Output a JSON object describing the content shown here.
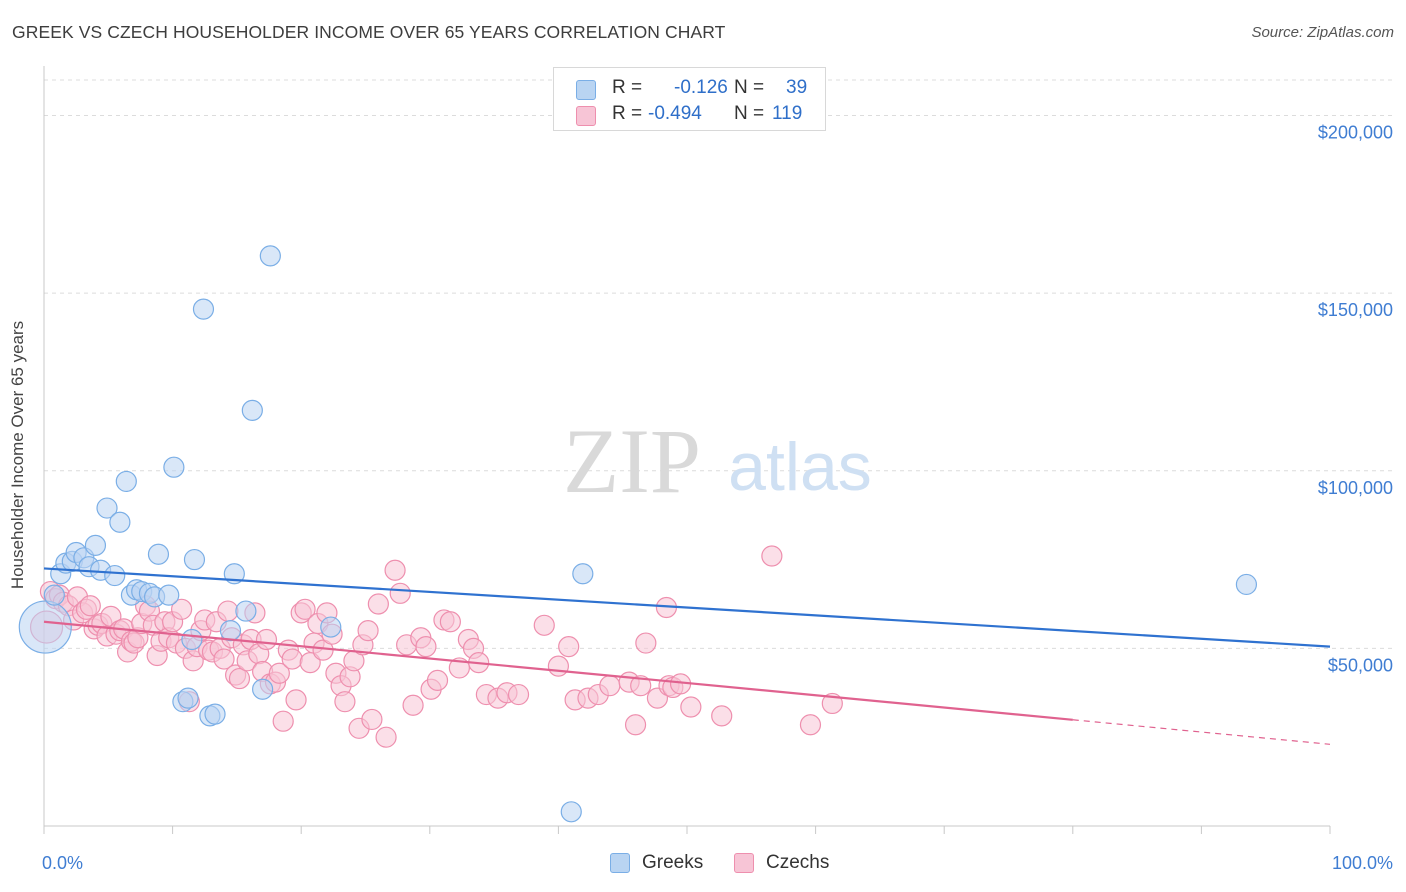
{
  "title": "GREEK VS CZECH HOUSEHOLDER INCOME OVER 65 YEARS CORRELATION CHART",
  "source": "Source: ZipAtlas.com",
  "watermark": {
    "zip": "ZIP",
    "atlas": "atlas"
  },
  "legend": {
    "greeks": {
      "r_label": "R =",
      "r_value": "-0.126",
      "n_label": "N =",
      "n_value": "39",
      "color": "#7aaee6",
      "fill": "#b9d4f2"
    },
    "czechs": {
      "r_label": "R =",
      "r_value": "-0.494",
      "n_label": "N =",
      "n_value": "119",
      "color": "#ee8fae",
      "fill": "#f7c5d6"
    }
  },
  "chart_data": {
    "type": "scatter",
    "title": "GREEK VS CZECH HOUSEHOLDER INCOME OVER 65 YEARS CORRELATION CHART",
    "xlabel": "",
    "ylabel": "Householder Income Over 65 years",
    "xlim": [
      0,
      100
    ],
    "ylim": [
      0,
      210000
    ],
    "x_tick_labels": [
      "0.0%",
      "100.0%"
    ],
    "y_ticks": [
      50000,
      100000,
      150000,
      200000
    ],
    "y_tick_labels": [
      "$50,000",
      "$100,000",
      "$150,000",
      "$200,000"
    ],
    "series": [
      {
        "name": "Greeks",
        "stroke": "#7aaee6",
        "fill": "#b9d4f2",
        "line_color": "#2f72d0",
        "trend": {
          "x0": 0,
          "y0": 72500,
          "x1": 100,
          "y1": 50500,
          "solid_to": 100
        },
        "points": [
          [
            0.1,
            56000,
            26
          ],
          [
            0.8,
            65000,
            10
          ],
          [
            1.3,
            71000,
            10
          ],
          [
            1.7,
            74000,
            10
          ],
          [
            2.2,
            74500,
            10
          ],
          [
            2.5,
            77000,
            10
          ],
          [
            3.1,
            75500,
            10
          ],
          [
            3.5,
            73000,
            10
          ],
          [
            4.0,
            79000,
            10
          ],
          [
            4.4,
            72000,
            10
          ],
          [
            4.9,
            89500,
            10
          ],
          [
            5.5,
            70500,
            10
          ],
          [
            5.9,
            85500,
            10
          ],
          [
            6.4,
            97000,
            10
          ],
          [
            6.8,
            65000,
            10
          ],
          [
            7.2,
            66500,
            10
          ],
          [
            7.6,
            66000,
            10
          ],
          [
            8.2,
            65500,
            10
          ],
          [
            8.6,
            64500,
            10
          ],
          [
            8.9,
            76500,
            10
          ],
          [
            9.7,
            65000,
            10
          ],
          [
            10.1,
            101000,
            10
          ],
          [
            10.8,
            35000,
            10
          ],
          [
            11.2,
            36000,
            10
          ],
          [
            11.5,
            52500,
            10
          ],
          [
            11.7,
            75000,
            10
          ],
          [
            12.4,
            145500,
            10
          ],
          [
            12.9,
            31000,
            10
          ],
          [
            13.3,
            31500,
            10
          ],
          [
            14.5,
            55000,
            10
          ],
          [
            14.8,
            71000,
            10
          ],
          [
            15.7,
            60500,
            10
          ],
          [
            16.2,
            117000,
            10
          ],
          [
            17.0,
            38500,
            10
          ],
          [
            17.6,
            160500,
            10
          ],
          [
            22.3,
            56000,
            10
          ],
          [
            41.0,
            4000,
            10
          ],
          [
            41.9,
            71000,
            10
          ],
          [
            93.5,
            68000,
            10
          ]
        ]
      },
      {
        "name": "Czechs",
        "stroke": "#ee8fae",
        "fill": "#f7c5d6",
        "line_color": "#e0628f",
        "trend": {
          "x0": 0,
          "y0": 57500,
          "x1": 100,
          "y1": 23000,
          "solid_to": 80
        },
        "points": [
          [
            0.2,
            56000,
            16
          ],
          [
            0.5,
            66000,
            10
          ],
          [
            0.9,
            64000,
            10
          ],
          [
            1.2,
            65000,
            10
          ],
          [
            1.5,
            63000,
            10
          ],
          [
            1.9,
            62000,
            10
          ],
          [
            2.3,
            58000,
            10
          ],
          [
            2.6,
            64500,
            10
          ],
          [
            3.0,
            60000,
            10
          ],
          [
            3.3,
            61000,
            10
          ],
          [
            3.6,
            62000,
            10
          ],
          [
            3.9,
            55500,
            10
          ],
          [
            4.2,
            56500,
            10
          ],
          [
            4.5,
            57000,
            10
          ],
          [
            4.9,
            53500,
            10
          ],
          [
            5.2,
            59000,
            10
          ],
          [
            5.6,
            54000,
            10
          ],
          [
            5.9,
            55000,
            10
          ],
          [
            6.2,
            55500,
            10
          ],
          [
            6.5,
            49000,
            10
          ],
          [
            6.8,
            52000,
            10
          ],
          [
            7.0,
            51500,
            10
          ],
          [
            7.3,
            53000,
            10
          ],
          [
            7.6,
            57000,
            10
          ],
          [
            7.9,
            62000,
            10
          ],
          [
            8.2,
            60500,
            10
          ],
          [
            8.5,
            56500,
            10
          ],
          [
            8.8,
            48000,
            10
          ],
          [
            9.1,
            52000,
            10
          ],
          [
            9.4,
            57500,
            10
          ],
          [
            9.7,
            53000,
            10
          ],
          [
            10.0,
            57500,
            10
          ],
          [
            10.3,
            51500,
            10
          ],
          [
            10.7,
            61000,
            10
          ],
          [
            11.0,
            50000,
            10
          ],
          [
            11.3,
            35000,
            10
          ],
          [
            11.6,
            46500,
            10
          ],
          [
            11.9,
            50500,
            10
          ],
          [
            12.2,
            55000,
            10
          ],
          [
            12.5,
            58000,
            10
          ],
          [
            12.8,
            49500,
            10
          ],
          [
            13.1,
            49000,
            10
          ],
          [
            13.4,
            57500,
            10
          ],
          [
            13.7,
            50000,
            10
          ],
          [
            14.0,
            47000,
            10
          ],
          [
            14.3,
            60500,
            10
          ],
          [
            14.6,
            53000,
            10
          ],
          [
            14.9,
            42500,
            10
          ],
          [
            15.2,
            41500,
            10
          ],
          [
            15.5,
            51000,
            10
          ],
          [
            15.8,
            46500,
            10
          ],
          [
            16.1,
            52500,
            10
          ],
          [
            16.4,
            60000,
            10
          ],
          [
            16.7,
            48500,
            10
          ],
          [
            17.0,
            43500,
            10
          ],
          [
            17.3,
            52500,
            10
          ],
          [
            17.6,
            40000,
            10
          ],
          [
            18.0,
            40500,
            10
          ],
          [
            18.3,
            43000,
            10
          ],
          [
            18.6,
            29500,
            10
          ],
          [
            19.0,
            49500,
            10
          ],
          [
            19.3,
            47000,
            10
          ],
          [
            19.6,
            35500,
            10
          ],
          [
            20.0,
            60000,
            10
          ],
          [
            20.3,
            61000,
            10
          ],
          [
            20.7,
            46000,
            10
          ],
          [
            21.0,
            51500,
            10
          ],
          [
            21.3,
            57000,
            10
          ],
          [
            21.7,
            49500,
            10
          ],
          [
            22.0,
            60000,
            10
          ],
          [
            22.4,
            54000,
            10
          ],
          [
            22.7,
            43000,
            10
          ],
          [
            23.1,
            39500,
            10
          ],
          [
            23.4,
            35000,
            10
          ],
          [
            23.8,
            42000,
            10
          ],
          [
            24.1,
            46500,
            10
          ],
          [
            24.5,
            27500,
            10
          ],
          [
            24.8,
            51000,
            10
          ],
          [
            25.2,
            55000,
            10
          ],
          [
            25.5,
            30000,
            10
          ],
          [
            26.0,
            62500,
            10
          ],
          [
            26.6,
            25000,
            10
          ],
          [
            27.3,
            72000,
            10
          ],
          [
            27.7,
            65500,
            10
          ],
          [
            28.2,
            51000,
            10
          ],
          [
            28.7,
            34000,
            10
          ],
          [
            29.3,
            53000,
            10
          ],
          [
            29.7,
            50500,
            10
          ],
          [
            30.1,
            38500,
            10
          ],
          [
            30.6,
            41000,
            10
          ],
          [
            31.1,
            58000,
            10
          ],
          [
            31.6,
            57500,
            10
          ],
          [
            32.3,
            44500,
            10
          ],
          [
            33.0,
            52500,
            10
          ],
          [
            33.4,
            50000,
            10
          ],
          [
            33.8,
            46000,
            10
          ],
          [
            34.4,
            37000,
            10
          ],
          [
            35.3,
            36000,
            10
          ],
          [
            36.0,
            37500,
            10
          ],
          [
            36.9,
            37000,
            10
          ],
          [
            38.9,
            56500,
            10
          ],
          [
            40.0,
            45000,
            10
          ],
          [
            40.8,
            50500,
            10
          ],
          [
            41.3,
            35500,
            10
          ],
          [
            42.3,
            36000,
            10
          ],
          [
            43.1,
            37000,
            10
          ],
          [
            44.0,
            39500,
            10
          ],
          [
            45.5,
            40500,
            10
          ],
          [
            46.0,
            28500,
            10
          ],
          [
            46.4,
            39500,
            10
          ],
          [
            46.8,
            51500,
            10
          ],
          [
            47.7,
            36000,
            10
          ],
          [
            48.4,
            61500,
            10
          ],
          [
            48.6,
            39500,
            10
          ],
          [
            48.9,
            39000,
            10
          ],
          [
            49.5,
            40000,
            10
          ],
          [
            50.3,
            33500,
            10
          ],
          [
            52.7,
            31000,
            10
          ],
          [
            56.6,
            76000,
            10
          ],
          [
            59.6,
            28500,
            10
          ],
          [
            61.3,
            34500,
            10
          ]
        ]
      }
    ]
  },
  "bottom_legend": [
    {
      "label": "Greeks",
      "color": "#7aaee6",
      "fill": "#b9d4f2"
    },
    {
      "label": "Czechs",
      "color": "#ee8fae",
      "fill": "#f7c5d6"
    }
  ]
}
